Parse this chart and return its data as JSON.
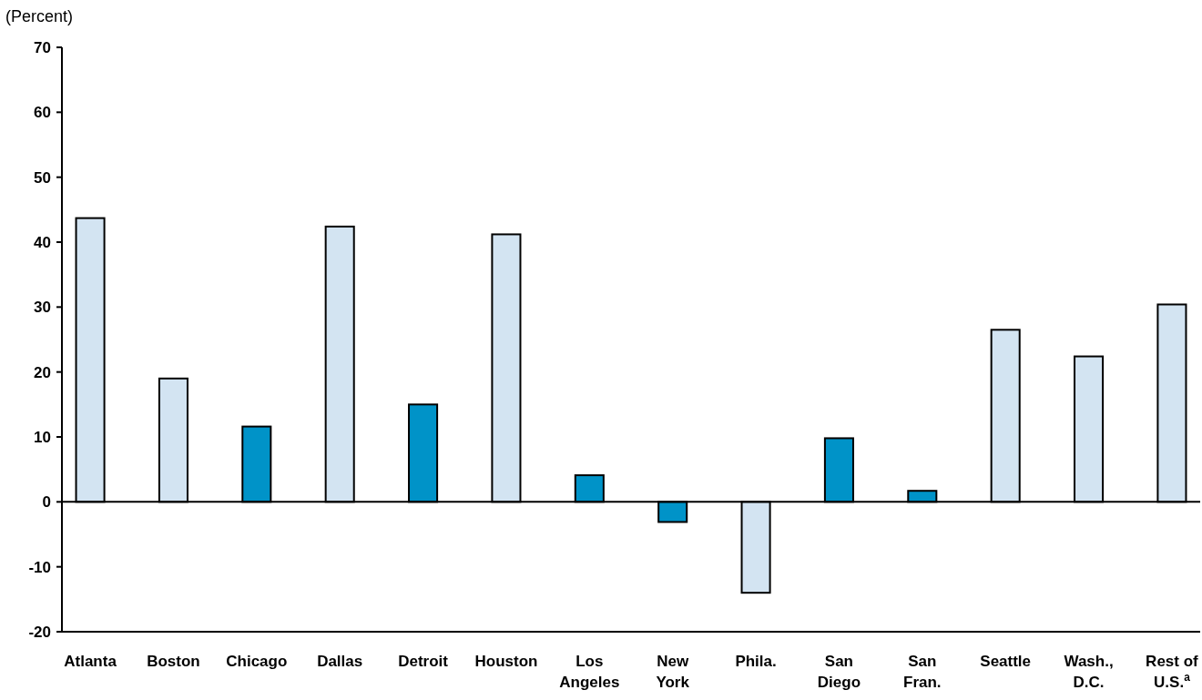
{
  "chart_data": {
    "type": "bar",
    "ylabel": "(Percent)",
    "categories": [
      "Atlanta",
      "Boston",
      "Chicago",
      "Dallas",
      "Detroit",
      "Houston",
      "Los Angeles",
      "New York",
      "Phila.",
      "San Diego",
      "San Fran.",
      "Seattle",
      "Wash., D.C.",
      "Rest of U.S.$^{a}$"
    ],
    "values": [
      43.7,
      19.0,
      11.6,
      42.4,
      15.0,
      41.2,
      4.1,
      -3.1,
      -14.0,
      9.8,
      1.7,
      26.5,
      22.4,
      30.4
    ],
    "colors": [
      "#d3e4f2",
      "#d3e4f2",
      "#0093c8",
      "#d3e4f2",
      "#0093c8",
      "#d3e4f2",
      "#0093c8",
      "#0093c8",
      "#d3e4f2",
      "#0093c8",
      "#0093c8",
      "#d3e4f2",
      "#d3e4f2",
      "#d3e4f2"
    ],
    "ylim": [
      -20,
      70
    ],
    "yticks": [
      -20,
      -10,
      0,
      10,
      20,
      30,
      40,
      50,
      60,
      70
    ]
  }
}
